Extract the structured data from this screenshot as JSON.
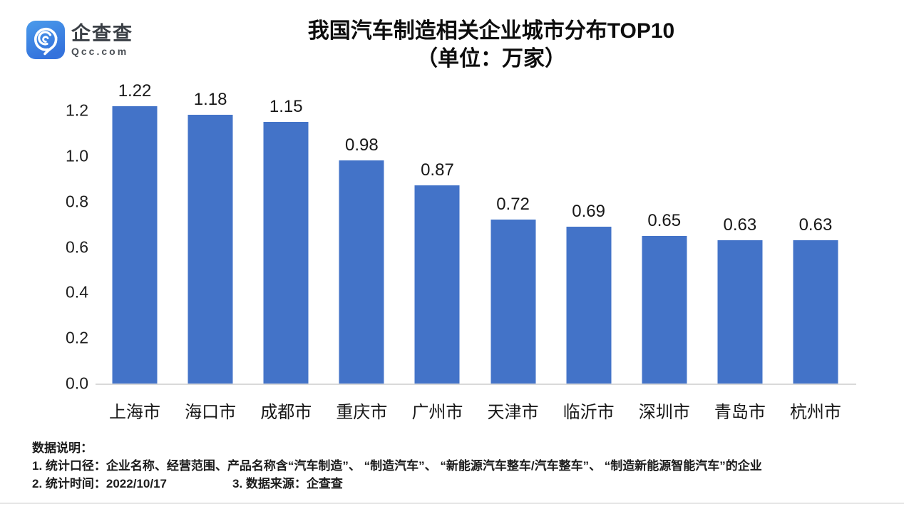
{
  "logo": {
    "brand": "企查查",
    "domain": "Qcc.com",
    "icon": "qcc-magnifier-icon",
    "icon_color_top": "#4A9BEB",
    "icon_color_bottom": "#3472DC"
  },
  "header": {
    "title": "我国汽车制造相关企业城市分布TOP10",
    "subtitle": "（单位：万家）"
  },
  "chart_data": {
    "type": "bar",
    "title": "我国汽车制造相关企业城市分布TOP10",
    "subtitle": "（单位：万家）",
    "unit": "万家",
    "categories": [
      "上海市",
      "海口市",
      "成都市",
      "重庆市",
      "广州市",
      "天津市",
      "临沂市",
      "深圳市",
      "青岛市",
      "杭州市"
    ],
    "values": [
      1.22,
      1.18,
      1.15,
      0.98,
      0.87,
      0.72,
      0.69,
      0.65,
      0.63,
      0.63
    ],
    "value_labels": [
      "1.22",
      "1.18",
      "1.15",
      "0.98",
      "0.87",
      "0.72",
      "0.69",
      "0.65",
      "0.63",
      "0.63"
    ],
    "xlabel": "",
    "ylabel": "",
    "ylim": [
      0,
      1.2
    ],
    "yticks": [
      "0.0",
      "0.2",
      "0.4",
      "0.6",
      "0.8",
      "1.0",
      "1.2"
    ],
    "grid": false,
    "legend": false,
    "bar_color": "#4373C8",
    "axis_line_color": "#d9d9d9"
  },
  "notes": {
    "heading": "数据说明：",
    "line1": "1. 统计口径：企业名称、经营范围、产品名称含“汽车制造”、 “制造汽车”、 “新能源汽车整车/汽车整车”、 “制造新能源智能汽车”的企业",
    "line2a": "2. 统计时间：2022/10/17",
    "line2b": "3. 数据来源：企查查"
  }
}
